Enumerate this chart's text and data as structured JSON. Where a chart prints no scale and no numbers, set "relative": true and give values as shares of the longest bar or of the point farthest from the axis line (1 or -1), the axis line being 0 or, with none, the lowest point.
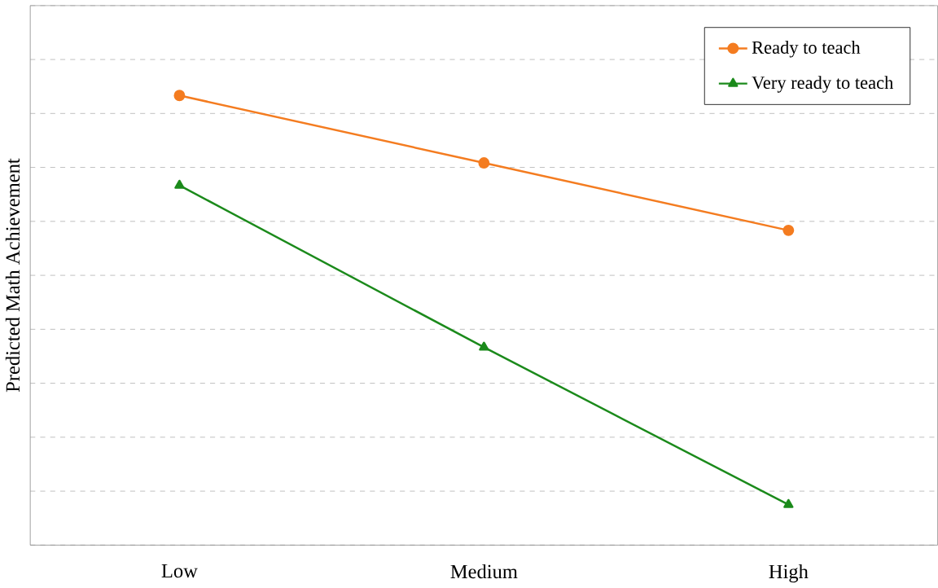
{
  "chart_data": {
    "type": "line",
    "ylabel": "Predicted Math Achievement",
    "categories": [
      "Low",
      "Medium",
      "High"
    ],
    "relative": true,
    "grid": "y",
    "legend": "top right",
    "series": [
      {
        "name": "Ready to teach",
        "color": "#f47c20",
        "marker": "circle",
        "values": [
          1,
          0.85,
          0.7
        ]
      },
      {
        "name": "Very ready to teach",
        "color": "#1b8a1b",
        "marker": "triangle",
        "values": [
          0.8,
          0.44,
          0.09
        ]
      }
    ]
  }
}
